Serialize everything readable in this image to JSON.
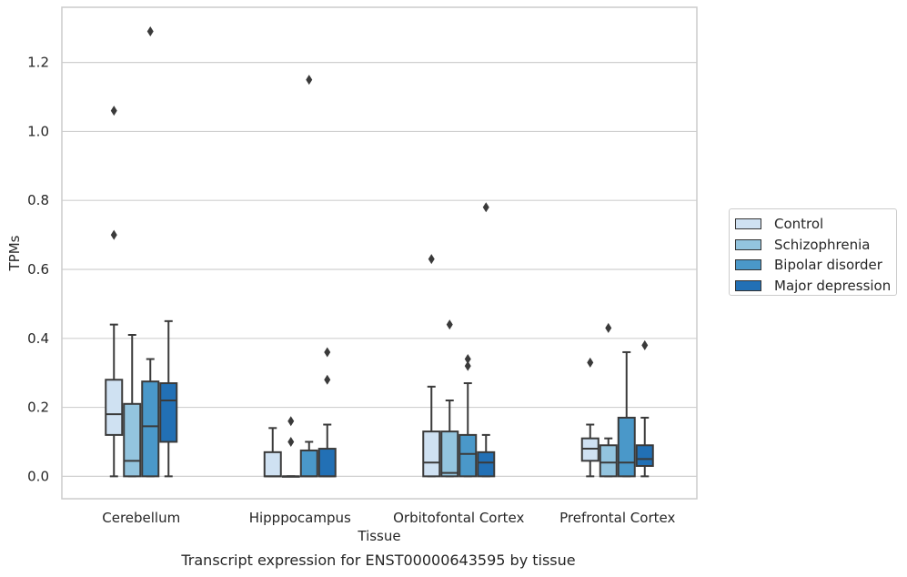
{
  "chart_data": {
    "type": "boxplot",
    "title": "",
    "caption": "Transcript expression for ENST00000643595 by tissue",
    "xlabel": "Tissue",
    "ylabel": "TPMs",
    "ylim": [
      -0.065,
      1.36
    ],
    "yticks": [
      0.0,
      0.2,
      0.4,
      0.6,
      0.8,
      1.0,
      1.2
    ],
    "ytick_labels": [
      "0.0",
      "0.2",
      "0.4",
      "0.6",
      "0.8",
      "1.0",
      "1.2"
    ],
    "grid": "horizontal",
    "legend_position": "right",
    "categories": [
      "Cerebellum",
      "Hipppocampus",
      "Orbitofontal Cortex",
      "Prefrontal Cortex"
    ],
    "series": [
      {
        "name": "Control",
        "color": "#cfe1f2",
        "boxes": [
          {
            "whislo": 0.0,
            "q1": 0.12,
            "med": 0.18,
            "q3": 0.28,
            "whishi": 0.44,
            "fliers": [
              0.7,
              1.06
            ]
          },
          {
            "whislo": 0.0,
            "q1": 0.0,
            "med": 0.0,
            "q3": 0.07,
            "whishi": 0.14,
            "fliers": []
          },
          {
            "whislo": 0.0,
            "q1": 0.0,
            "med": 0.04,
            "q3": 0.13,
            "whishi": 0.26,
            "fliers": [
              0.63
            ]
          },
          {
            "whislo": 0.0,
            "q1": 0.045,
            "med": 0.08,
            "q3": 0.11,
            "whishi": 0.15,
            "fliers": [
              0.33
            ]
          }
        ]
      },
      {
        "name": "Schizophrenia",
        "color": "#93c4de",
        "boxes": [
          {
            "whislo": 0.0,
            "q1": 0.0,
            "med": 0.045,
            "q3": 0.21,
            "whishi": 0.41,
            "fliers": []
          },
          {
            "whislo": 0.0,
            "q1": 0.0,
            "med": 0.0,
            "q3": 0.0,
            "whishi": 0.0,
            "fliers": [
              0.1,
              0.16
            ]
          },
          {
            "whislo": 0.0,
            "q1": 0.0,
            "med": 0.01,
            "q3": 0.13,
            "whishi": 0.22,
            "fliers": [
              0.44
            ]
          },
          {
            "whislo": 0.0,
            "q1": 0.0,
            "med": 0.04,
            "q3": 0.09,
            "whishi": 0.11,
            "fliers": [
              0.43
            ]
          }
        ]
      },
      {
        "name": "Bipolar disorder",
        "color": "#4a98c9",
        "boxes": [
          {
            "whislo": 0.0,
            "q1": 0.0,
            "med": 0.145,
            "q3": 0.275,
            "whishi": 0.34,
            "fliers": [
              1.29
            ]
          },
          {
            "whislo": 0.0,
            "q1": 0.0,
            "med": 0.0,
            "q3": 0.075,
            "whishi": 0.1,
            "fliers": [
              1.15
            ]
          },
          {
            "whislo": 0.0,
            "q1": 0.0,
            "med": 0.065,
            "q3": 0.12,
            "whishi": 0.27,
            "fliers": [
              0.32,
              0.34
            ]
          },
          {
            "whislo": 0.0,
            "q1": 0.0,
            "med": 0.04,
            "q3": 0.17,
            "whishi": 0.36,
            "fliers": []
          }
        ]
      },
      {
        "name": "Major depression",
        "color": "#2270b5",
        "boxes": [
          {
            "whislo": 0.0,
            "q1": 0.1,
            "med": 0.22,
            "q3": 0.27,
            "whishi": 0.45,
            "fliers": []
          },
          {
            "whislo": 0.0,
            "q1": 0.0,
            "med": 0.0,
            "q3": 0.08,
            "whishi": 0.15,
            "fliers": [
              0.28,
              0.36
            ]
          },
          {
            "whislo": 0.0,
            "q1": 0.0,
            "med": 0.04,
            "q3": 0.07,
            "whishi": 0.12,
            "fliers": [
              0.78
            ]
          },
          {
            "whislo": 0.0,
            "q1": 0.03,
            "med": 0.05,
            "q3": 0.09,
            "whishi": 0.17,
            "fliers": [
              0.38
            ]
          }
        ]
      }
    ]
  }
}
